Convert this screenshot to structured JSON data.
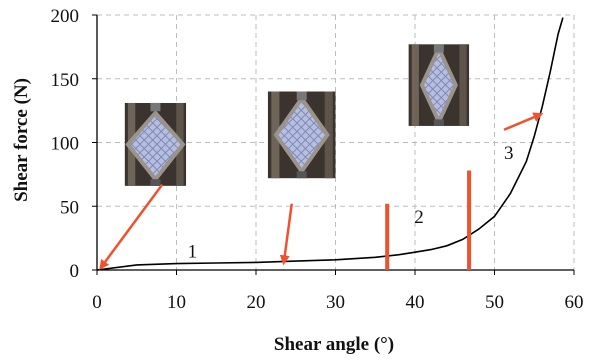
{
  "chart_data": {
    "type": "line",
    "xlabel": "Shear angle (°)",
    "ylabel": "Shear force (N)",
    "xlim": [
      0,
      60
    ],
    "ylim": [
      0,
      200
    ],
    "x_ticks": [
      0,
      10,
      20,
      30,
      40,
      50,
      60
    ],
    "x_tick_labels": [
      "0",
      "10",
      "20",
      "30",
      "40",
      "50",
      "60"
    ],
    "y_ticks": [
      0,
      50,
      100,
      150,
      200
    ],
    "y_tick_labels": [
      "0",
      "50",
      "100",
      "150",
      "200"
    ],
    "grid": "dashed",
    "series": [
      {
        "color": "#000000",
        "x": [
          0,
          5,
          10,
          15,
          20,
          25,
          30,
          35,
          38,
          40,
          42,
          44,
          46,
          48,
          50,
          52,
          54,
          55,
          56,
          57,
          58,
          58.6
        ],
        "y": [
          0,
          4,
          5,
          5.5,
          6,
          7,
          8,
          10,
          12,
          14,
          16,
          19,
          24,
          32,
          42,
          60,
          85,
          105,
          128,
          155,
          185,
          198
        ]
      }
    ],
    "region_boundaries": [
      {
        "x": 36.5,
        "y_range": [
          0,
          52
        ],
        "color": "#f0522e"
      },
      {
        "x": 46.8,
        "y_range": [
          0,
          78
        ],
        "color": "#f0522e"
      }
    ],
    "annotations": [
      {
        "text": "1",
        "x": 12,
        "y": 10
      },
      {
        "text": "2",
        "x": 40.5,
        "y": 37
      },
      {
        "text": "3",
        "x": 51.8,
        "y": 87
      }
    ],
    "arrows": [
      {
        "from": [
          8.2,
          67
        ],
        "to": [
          0.5,
          2
        ],
        "color": "#f0522e"
      },
      {
        "from": [
          24.5,
          52
        ],
        "to": [
          23.5,
          6
        ],
        "color": "#f0522e"
      },
      {
        "from": [
          51.2,
          110
        ],
        "to": [
          55.8,
          122
        ],
        "color": "#f0522e"
      }
    ],
    "images": [
      {
        "name": "specimen-photo-stage-1",
        "x_range": [
          3.5,
          11.2
        ],
        "y_range": [
          66,
          131
        ]
      },
      {
        "name": "specimen-photo-stage-2",
        "x_range": [
          21.5,
          30.0
        ],
        "y_range": [
          72,
          140
        ]
      },
      {
        "name": "specimen-photo-stage-3",
        "x_range": [
          39.2,
          46.8
        ],
        "y_range": [
          113,
          177
        ]
      }
    ]
  }
}
